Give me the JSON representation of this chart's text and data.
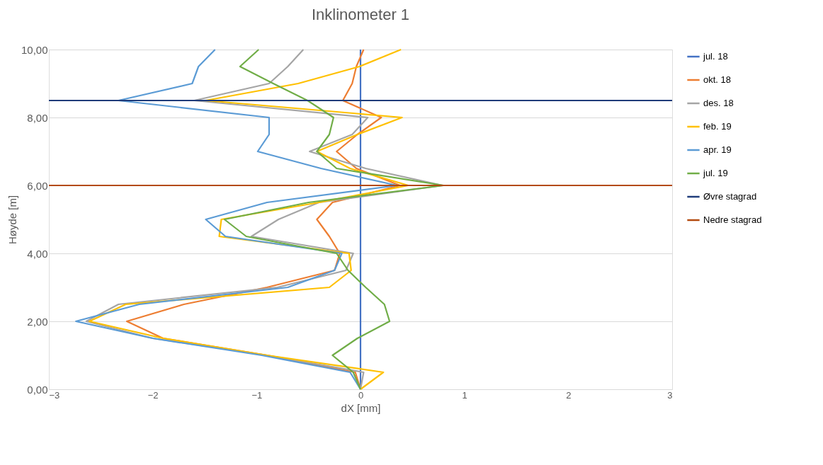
{
  "chart_data": {
    "type": "line",
    "title": "Inklinometer 1",
    "xlabel": "dX [mm]",
    "ylabel": "Høyde [m]",
    "xlim": [
      -3,
      3
    ],
    "xticks": [
      -3,
      -2,
      -1,
      0,
      1,
      2,
      3
    ],
    "ylim": [
      0,
      10
    ],
    "yticks": [
      {
        "value": 0,
        "label": "0,00"
      },
      {
        "value": 2,
        "label": "2,00"
      },
      {
        "value": 4,
        "label": "4,00"
      },
      {
        "value": 6,
        "label": "6,00"
      },
      {
        "value": 8,
        "label": "8,00"
      },
      {
        "value": 10,
        "label": "10,00"
      }
    ],
    "grid": "y",
    "legend": "right",
    "marker": "none",
    "line_style": "solid",
    "series": [
      {
        "name": "jul. 18",
        "color": "#4472c4",
        "x": [
          0,
          0
        ],
        "values": [
          0,
          10
        ]
      },
      {
        "name": "okt. 18",
        "color": "#ed7d31",
        "x": [
          0,
          -0.05,
          -0.9,
          -1.9,
          -2.25,
          -1.7,
          -0.9,
          -0.25,
          -0.2,
          -0.3,
          -0.42,
          -0.27,
          0.38,
          -0.04,
          -0.23,
          -0.03,
          0.2,
          -0.17,
          -0.08,
          -0.04,
          0.03
        ],
        "values": [
          0,
          0.5,
          1,
          1.5,
          2,
          2.5,
          3,
          3.5,
          4,
          4.5,
          5,
          5.5,
          6,
          6.5,
          7,
          7.5,
          8,
          8.5,
          9,
          9.5,
          10
        ]
      },
      {
        "name": "des. 18",
        "color": "#a5a5a5",
        "x": [
          0,
          0.03,
          -0.9,
          -2.0,
          -2.64,
          -2.33,
          -0.8,
          -0.14,
          -0.07,
          -1.05,
          -0.79,
          -0.4,
          0.79,
          0.05,
          -0.49,
          -0.08,
          0.07,
          -1.6,
          -0.88,
          -0.7,
          -0.55
        ],
        "values": [
          0,
          0.5,
          1,
          1.5,
          2,
          2.5,
          3,
          3.5,
          4,
          4.5,
          5,
          5.5,
          6,
          6.5,
          7,
          7.5,
          8,
          8.5,
          9,
          9.5,
          10
        ]
      },
      {
        "name": "feb. 19",
        "color": "#ffc000",
        "x": [
          0,
          0.22,
          -0.9,
          -1.9,
          -2.61,
          -2.26,
          -0.3,
          -0.09,
          -0.11,
          -1.36,
          -1.34,
          -0.4,
          0.46,
          -0.1,
          -0.42,
          -0.03,
          0.4,
          -1.49,
          -0.6,
          -0.01,
          0.39
        ],
        "values": [
          0,
          0.5,
          1,
          1.5,
          2,
          2.5,
          3,
          3.5,
          4,
          4.5,
          5,
          5.5,
          6,
          6.5,
          7,
          7.5,
          8,
          8.5,
          9,
          9.5,
          10
        ]
      },
      {
        "name": "apr. 19",
        "color": "#5b9bd5",
        "x": [
          0,
          -0.1,
          -0.95,
          -2.0,
          -2.74,
          -2.13,
          -0.7,
          -0.25,
          -0.18,
          -1.3,
          -1.49,
          -0.9,
          0.35,
          -0.38,
          -0.99,
          -0.88,
          -0.88,
          -2.33,
          -1.62,
          -1.56,
          -1.4
        ],
        "values": [
          0,
          0.5,
          1,
          1.5,
          2,
          2.5,
          3,
          3.5,
          4,
          4.5,
          5,
          5.5,
          6,
          6.5,
          7,
          7.5,
          8,
          8.5,
          9,
          9.5,
          10
        ]
      },
      {
        "name": "jul. 19",
        "color": "#70ad47",
        "x": [
          0,
          -0.07,
          -0.27,
          -0.03,
          0.28,
          0.23,
          0.05,
          -0.12,
          -0.23,
          -1.1,
          -1.31,
          -0.5,
          0.8,
          -0.23,
          -0.42,
          -0.3,
          -0.26,
          -0.51,
          -0.84,
          -1.16,
          -0.98
        ],
        "values": [
          0,
          0.5,
          1,
          1.5,
          2,
          2.5,
          3,
          3.5,
          4,
          4.5,
          5,
          5.5,
          6,
          6.5,
          7,
          7.5,
          8,
          8.5,
          9,
          9.5,
          10
        ]
      },
      {
        "name": "Øvre stagrad",
        "color": "#1f3c7a",
        "x": [
          -3,
          3
        ],
        "values": [
          8.5,
          8.5
        ]
      },
      {
        "name": "Nedre stagrad",
        "color": "#b34a0e",
        "x": [
          -3,
          3
        ],
        "values": [
          6,
          6
        ]
      }
    ]
  }
}
